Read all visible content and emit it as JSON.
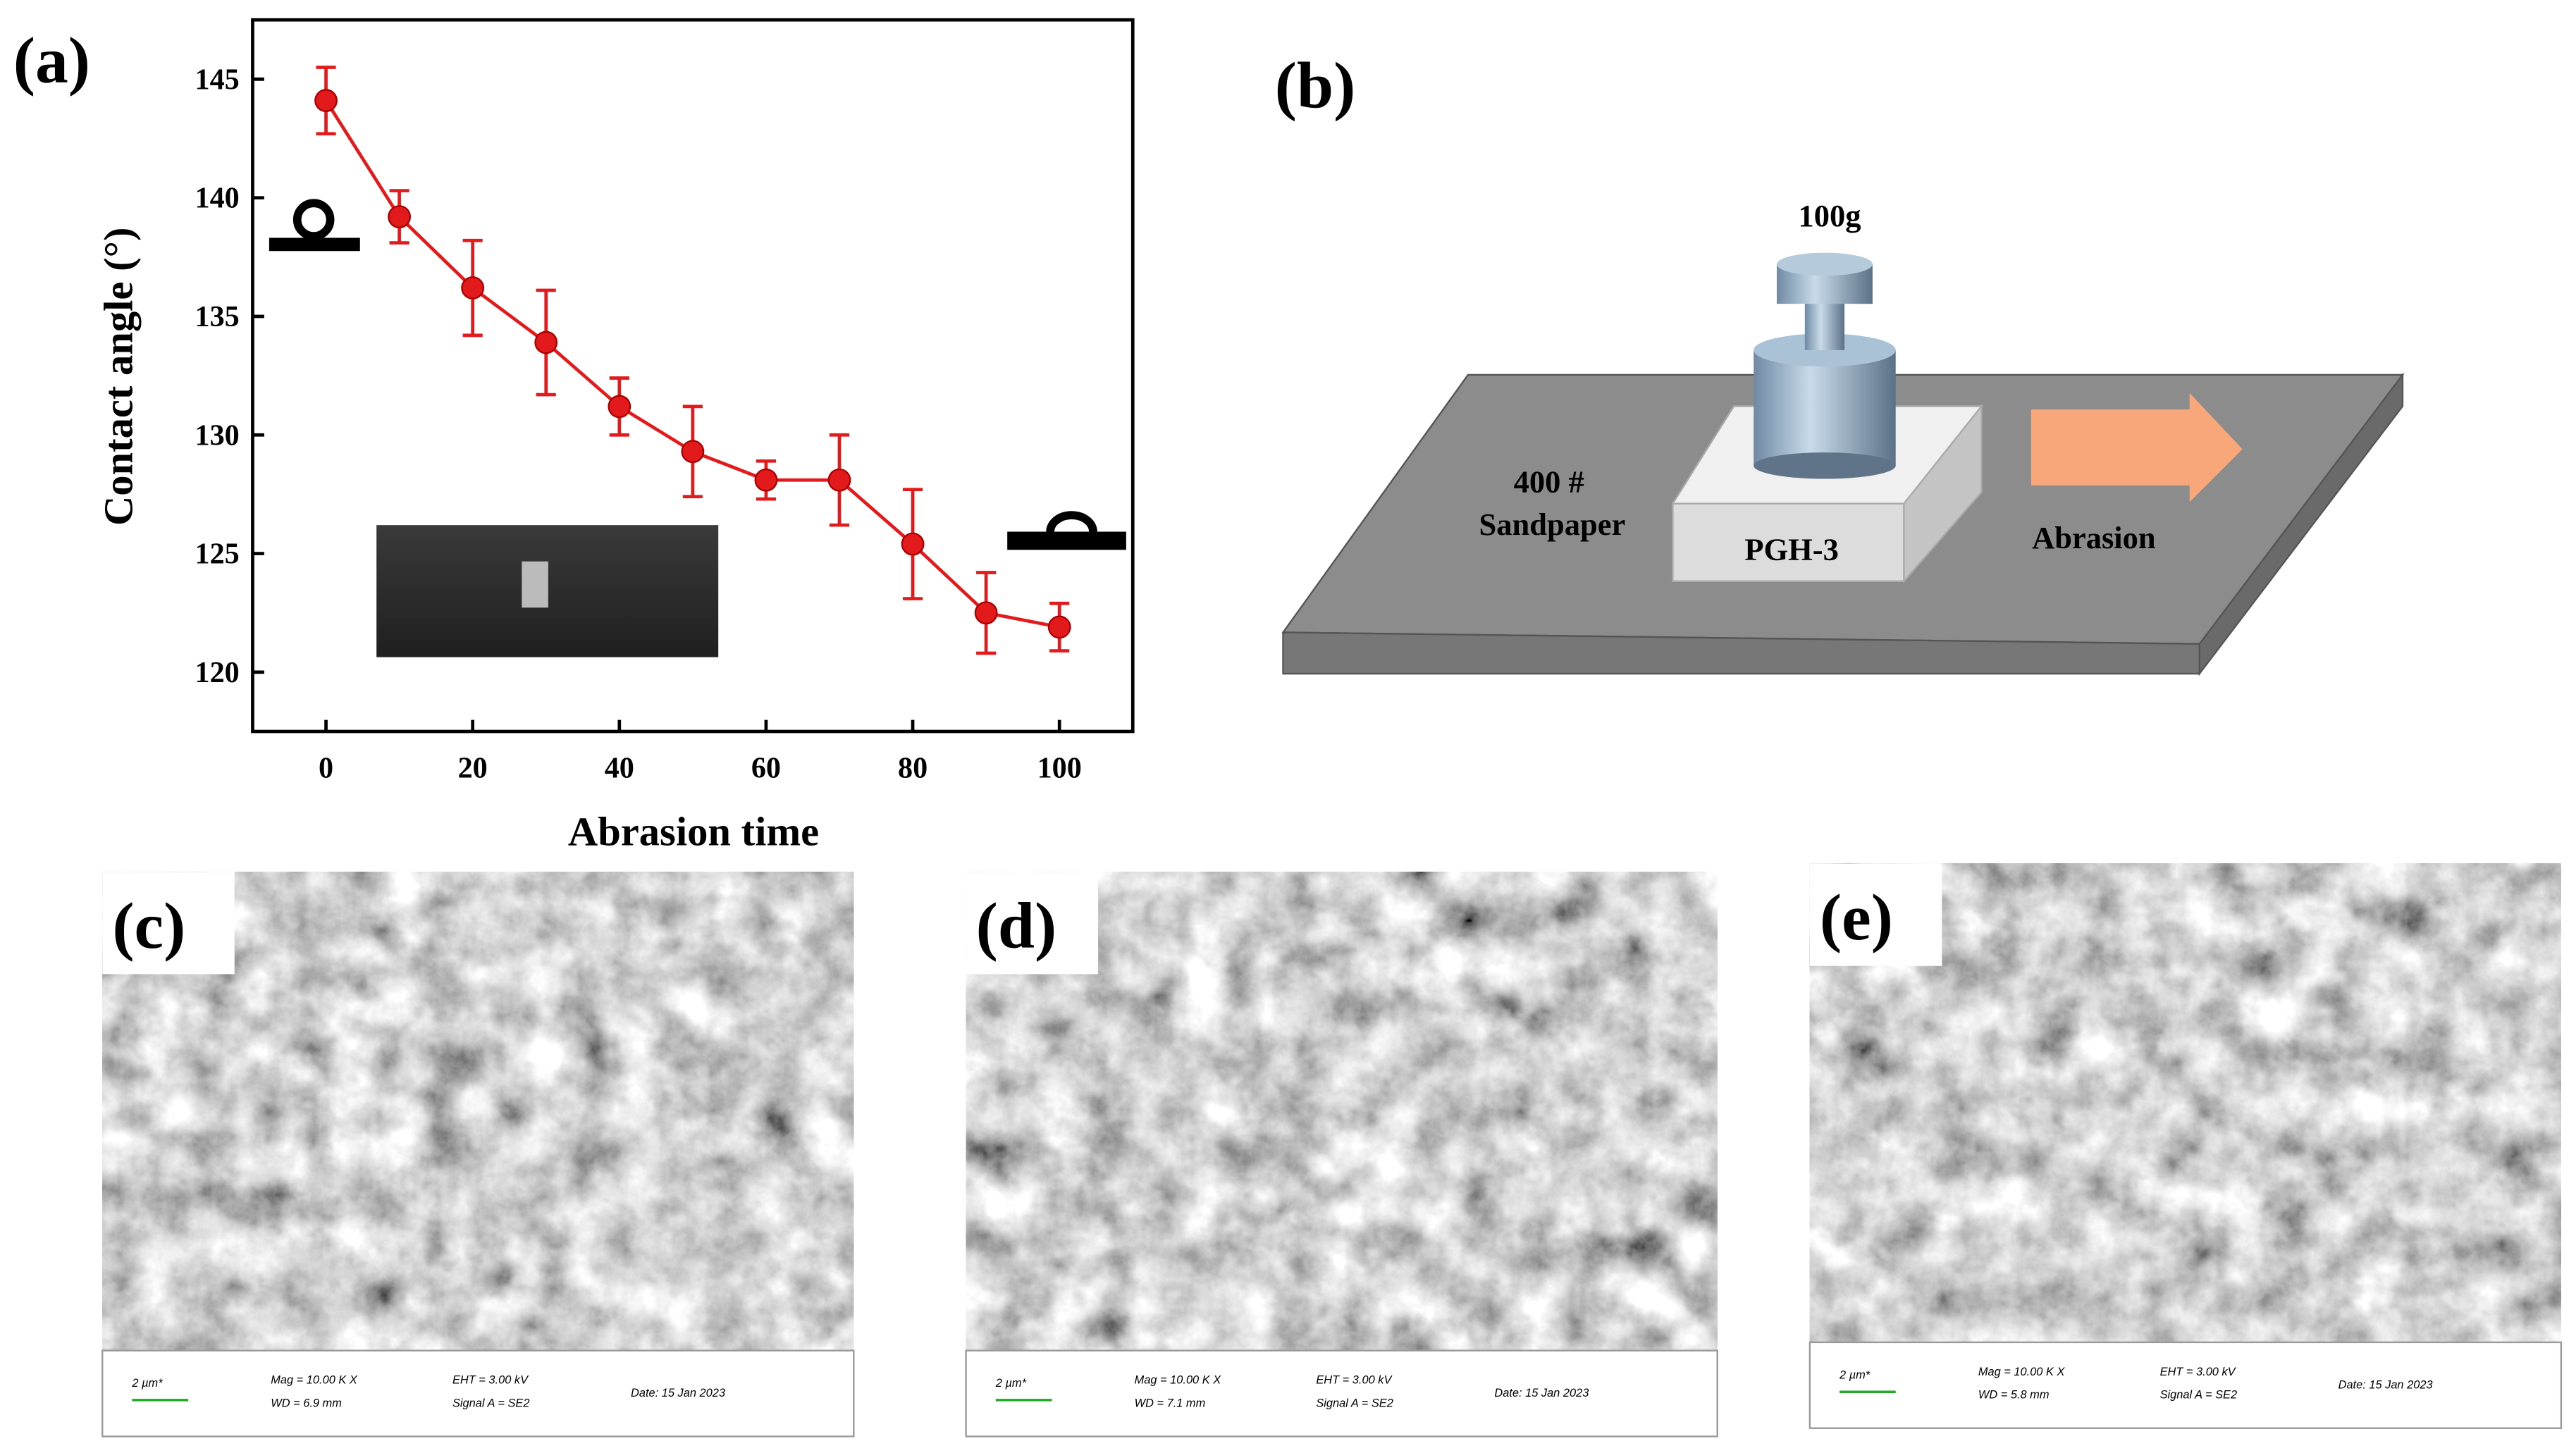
{
  "chart_data": {
    "type": "line",
    "xlabel": "Abrasion time",
    "ylabel": "Contact angle (°)",
    "x": [
      0,
      10,
      20,
      30,
      40,
      50,
      60,
      70,
      80,
      90,
      100
    ],
    "series": [
      {
        "color": "#e31a1c",
        "values": [
          144.1,
          139.2,
          136.2,
          133.9,
          131.2,
          129.3,
          128.1,
          128.1,
          125.4,
          122.5,
          121.9
        ],
        "errors": [
          1.4,
          1.1,
          2.0,
          2.2,
          1.2,
          1.9,
          0.8,
          1.9,
          2.3,
          1.7,
          1.0
        ]
      }
    ],
    "xlim": [
      -10,
      110
    ],
    "ylim": [
      117.5,
      147.5
    ],
    "xticks": [
      0,
      20,
      40,
      60,
      80,
      100
    ],
    "yticks": [
      120,
      125,
      130,
      135,
      140,
      145
    ]
  },
  "panels": [
    "(a)",
    "(b)"
  ],
  "diagram": {
    "weight": "100g",
    "surface_line1": "400 #",
    "surface_line2": "Sandpaper",
    "sample": "PGH-3",
    "motion": "Abrasion"
  },
  "sem": [
    {
      "label": "(c)",
      "scale": "2 µm*",
      "mag": "Mag =  10.00 K X",
      "wd": "WD = 6.9 mm",
      "eht": "EHT = 3.00 kV",
      "signal": "Signal A = SE2",
      "date": "Date: 15 Jan 2023"
    },
    {
      "label": "(d)",
      "scale": "2 µm*",
      "mag": "Mag =  10.00 K X",
      "wd": "WD = 7.1 mm",
      "eht": "EHT = 3.00 kV",
      "signal": "Signal A = SE2",
      "date": "Date: 15 Jan 2023"
    },
    {
      "label": "(e)",
      "scale": "2 µm*",
      "mag": "Mag =  10.00 K X",
      "wd": "WD = 5.8 mm",
      "eht": "EHT = 3.00 kV",
      "signal": "Signal A = SE2",
      "date": "Date: 15 Jan 2023"
    }
  ]
}
